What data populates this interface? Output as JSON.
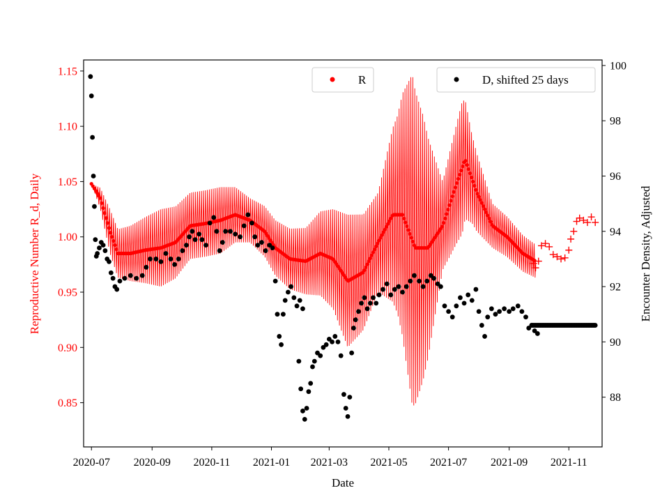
{
  "chart_data": {
    "type": "scatter",
    "xlabel": "Date",
    "ylabel_left": "Reproductive Number R_d, Daily",
    "ylabel_right": "Encounter Density, Adjusted",
    "left_color": "#ff0000",
    "right_color": "#000000",
    "x_range": [
      "2020-06-23",
      "2021-12-05"
    ],
    "y_left_range": [
      0.81,
      1.16
    ],
    "y_right_range": [
      86.2,
      100.2
    ],
    "x_ticks": [
      "2020-07",
      "2020-09",
      "2020-11",
      "2021-01",
      "2021-03",
      "2021-05",
      "2021-07",
      "2021-09",
      "2021-11"
    ],
    "y_left_ticks": [
      "0.85",
      "0.90",
      "0.95",
      "1.00",
      "1.05",
      "1.10",
      "1.15"
    ],
    "y_right_ticks": [
      "88",
      "90",
      "92",
      "94",
      "96",
      "98",
      "100"
    ],
    "legend": [
      {
        "label": "R",
        "color": "#ff0000"
      },
      {
        "label": "D, shifted 25 days",
        "color": "#000000"
      }
    ],
    "r_trend": [
      [
        "2020-07-01",
        1.048
      ],
      [
        "2020-07-10",
        1.035
      ],
      [
        "2020-07-20",
        1.005
      ],
      [
        "2020-07-28",
        0.985
      ],
      [
        "2020-08-10",
        0.985
      ],
      [
        "2020-08-25",
        0.988
      ],
      [
        "2020-09-10",
        0.99
      ],
      [
        "2020-09-25",
        0.995
      ],
      [
        "2020-10-10",
        1.01
      ],
      [
        "2020-10-25",
        1.012
      ],
      [
        "2020-11-10",
        1.015
      ],
      [
        "2020-11-25",
        1.02
      ],
      [
        "2020-12-10",
        1.015
      ],
      [
        "2020-12-25",
        1.005
      ],
      [
        "2021-01-05",
        0.99
      ],
      [
        "2021-01-20",
        0.98
      ],
      [
        "2021-02-05",
        0.978
      ],
      [
        "2021-02-20",
        0.985
      ],
      [
        "2021-03-05",
        0.98
      ],
      [
        "2021-03-20",
        0.96
      ],
      [
        "2021-04-05",
        0.968
      ],
      [
        "2021-04-20",
        0.995
      ],
      [
        "2021-05-05",
        1.02
      ],
      [
        "2021-05-15",
        1.02
      ],
      [
        "2021-05-28",
        0.99
      ],
      [
        "2021-06-10",
        0.99
      ],
      [
        "2021-06-25",
        1.01
      ],
      [
        "2021-07-10",
        1.05
      ],
      [
        "2021-07-18",
        1.07
      ],
      [
        "2021-07-30",
        1.04
      ],
      [
        "2021-08-15",
        1.01
      ],
      [
        "2021-08-30",
        1.0
      ],
      [
        "2021-09-15",
        0.985
      ],
      [
        "2021-09-28",
        0.978
      ]
    ],
    "r_amplitude": [
      [
        "2020-07-01",
        0.0
      ],
      [
        "2020-07-20",
        0.02
      ],
      [
        "2020-08-10",
        0.025
      ],
      [
        "2020-09-10",
        0.035
      ],
      [
        "2020-10-10",
        0.03
      ],
      [
        "2020-11-10",
        0.03
      ],
      [
        "2020-12-10",
        0.02
      ],
      [
        "2021-01-05",
        0.025
      ],
      [
        "2021-02-05",
        0.03
      ],
      [
        "2021-03-05",
        0.045
      ],
      [
        "2021-03-20",
        0.06
      ],
      [
        "2021-04-20",
        0.045
      ],
      [
        "2021-05-10",
        0.09
      ],
      [
        "2021-05-25",
        0.15
      ],
      [
        "2021-06-05",
        0.12
      ],
      [
        "2021-06-25",
        0.04
      ],
      [
        "2021-07-15",
        0.06
      ],
      [
        "2021-07-25",
        0.04
      ],
      [
        "2021-08-15",
        0.02
      ],
      [
        "2021-09-28",
        0.015
      ]
    ],
    "r_plus_markers": [
      [
        "2021-09-26",
        0.976
      ],
      [
        "2021-09-28",
        0.972
      ],
      [
        "2021-10-01",
        0.978
      ],
      [
        "2021-10-04",
        0.992
      ],
      [
        "2021-10-08",
        0.994
      ],
      [
        "2021-10-12",
        0.991
      ],
      [
        "2021-10-16",
        0.984
      ],
      [
        "2021-10-20",
        0.982
      ],
      [
        "2021-10-24",
        0.98
      ],
      [
        "2021-10-28",
        0.981
      ],
      [
        "2021-11-01",
        0.988
      ],
      [
        "2021-11-03",
        0.998
      ],
      [
        "2021-11-06",
        1.005
      ],
      [
        "2021-11-09",
        1.014
      ],
      [
        "2021-11-12",
        1.017
      ],
      [
        "2021-11-16",
        1.015
      ],
      [
        "2021-11-20",
        1.013
      ],
      [
        "2021-11-24",
        1.018
      ],
      [
        "2021-11-28",
        1.013
      ]
    ],
    "d_points": [
      [
        "2020-06-30",
        99.6
      ],
      [
        "2020-07-01",
        98.9
      ],
      [
        "2020-07-02",
        97.4
      ],
      [
        "2020-07-03",
        96.0
      ],
      [
        "2020-07-04",
        94.9
      ],
      [
        "2020-07-05",
        93.7
      ],
      [
        "2020-07-06",
        93.1
      ],
      [
        "2020-07-07",
        93.2
      ],
      [
        "2020-07-09",
        93.4
      ],
      [
        "2020-07-11",
        93.6
      ],
      [
        "2020-07-13",
        93.5
      ],
      [
        "2020-07-15",
        93.3
      ],
      [
        "2020-07-17",
        93.0
      ],
      [
        "2020-07-19",
        92.9
      ],
      [
        "2020-07-21",
        92.5
      ],
      [
        "2020-07-23",
        92.3
      ],
      [
        "2020-07-25",
        92.0
      ],
      [
        "2020-07-27",
        91.9
      ],
      [
        "2020-07-30",
        92.2
      ],
      [
        "2020-08-04",
        92.3
      ],
      [
        "2020-08-10",
        92.4
      ],
      [
        "2020-08-16",
        92.3
      ],
      [
        "2020-08-22",
        92.4
      ],
      [
        "2020-08-26",
        92.7
      ],
      [
        "2020-08-30",
        93.0
      ],
      [
        "2020-09-05",
        93.0
      ],
      [
        "2020-09-10",
        92.9
      ],
      [
        "2020-09-15",
        93.2
      ],
      [
        "2020-09-20",
        93.0
      ],
      [
        "2020-09-24",
        92.8
      ],
      [
        "2020-09-28",
        93.0
      ],
      [
        "2020-10-02",
        93.3
      ],
      [
        "2020-10-06",
        93.5
      ],
      [
        "2020-10-09",
        93.8
      ],
      [
        "2020-10-12",
        94.0
      ],
      [
        "2020-10-15",
        93.7
      ],
      [
        "2020-10-19",
        93.9
      ],
      [
        "2020-10-22",
        93.7
      ],
      [
        "2020-10-26",
        93.5
      ],
      [
        "2020-10-30",
        94.3
      ],
      [
        "2020-11-03",
        94.5
      ],
      [
        "2020-11-06",
        94.0
      ],
      [
        "2020-11-09",
        93.3
      ],
      [
        "2020-11-12",
        93.6
      ],
      [
        "2020-11-15",
        94.0
      ],
      [
        "2020-11-20",
        94.0
      ],
      [
        "2020-11-25",
        93.9
      ],
      [
        "2020-11-30",
        93.8
      ],
      [
        "2020-12-04",
        94.2
      ],
      [
        "2020-12-08",
        94.6
      ],
      [
        "2020-12-12",
        94.3
      ],
      [
        "2020-12-15",
        93.8
      ],
      [
        "2020-12-18",
        93.5
      ],
      [
        "2020-12-22",
        93.6
      ],
      [
        "2020-12-26",
        93.3
      ],
      [
        "2020-12-30",
        93.5
      ],
      [
        "2021-01-02",
        93.4
      ],
      [
        "2021-01-05",
        92.2
      ],
      [
        "2021-01-07",
        91.0
      ],
      [
        "2021-01-09",
        90.2
      ],
      [
        "2021-01-11",
        89.9
      ],
      [
        "2021-01-13",
        91.0
      ],
      [
        "2021-01-15",
        91.5
      ],
      [
        "2021-01-18",
        91.8
      ],
      [
        "2021-01-21",
        92.0
      ],
      [
        "2021-01-24",
        91.6
      ],
      [
        "2021-01-27",
        91.3
      ],
      [
        "2021-01-30",
        91.5
      ],
      [
        "2021-02-02",
        91.2
      ],
      [
        "2021-01-29",
        89.3
      ],
      [
        "2021-01-31",
        88.3
      ],
      [
        "2021-02-02",
        87.5
      ],
      [
        "2021-02-04",
        87.2
      ],
      [
        "2021-02-06",
        87.6
      ],
      [
        "2021-02-08",
        88.2
      ],
      [
        "2021-02-10",
        88.5
      ],
      [
        "2021-02-12",
        89.1
      ],
      [
        "2021-02-14",
        89.3
      ],
      [
        "2021-02-17",
        89.6
      ],
      [
        "2021-02-20",
        89.5
      ],
      [
        "2021-02-23",
        89.8
      ],
      [
        "2021-02-26",
        89.9
      ],
      [
        "2021-03-01",
        90.1
      ],
      [
        "2021-03-04",
        90.0
      ],
      [
        "2021-03-07",
        90.2
      ],
      [
        "2021-03-10",
        90.0
      ],
      [
        "2021-03-13",
        89.5
      ],
      [
        "2021-03-16",
        88.1
      ],
      [
        "2021-03-18",
        87.6
      ],
      [
        "2021-03-20",
        87.3
      ],
      [
        "2021-03-22",
        88.0
      ],
      [
        "2021-03-24",
        89.6
      ],
      [
        "2021-03-26",
        90.5
      ],
      [
        "2021-03-28",
        90.8
      ],
      [
        "2021-03-31",
        91.1
      ],
      [
        "2021-04-03",
        91.4
      ],
      [
        "2021-04-06",
        91.6
      ],
      [
        "2021-04-09",
        91.2
      ],
      [
        "2021-04-12",
        91.4
      ],
      [
        "2021-04-15",
        91.6
      ],
      [
        "2021-04-18",
        91.4
      ],
      [
        "2021-04-21",
        91.7
      ],
      [
        "2021-04-25",
        91.9
      ],
      [
        "2021-04-29",
        92.1
      ],
      [
        "2021-05-03",
        91.7
      ],
      [
        "2021-05-07",
        91.9
      ],
      [
        "2021-05-11",
        92.0
      ],
      [
        "2021-05-15",
        91.8
      ],
      [
        "2021-05-19",
        92.0
      ],
      [
        "2021-05-23",
        92.2
      ],
      [
        "2021-05-27",
        92.4
      ],
      [
        "2021-06-01",
        92.2
      ],
      [
        "2021-06-05",
        92.0
      ],
      [
        "2021-06-09",
        92.2
      ],
      [
        "2021-06-13",
        92.4
      ],
      [
        "2021-06-16",
        92.3
      ],
      [
        "2021-06-20",
        92.1
      ],
      [
        "2021-06-23",
        92.0
      ],
      [
        "2021-06-27",
        91.3
      ],
      [
        "2021-07-01",
        91.1
      ],
      [
        "2021-07-05",
        90.9
      ],
      [
        "2021-07-09",
        91.3
      ],
      [
        "2021-07-13",
        91.6
      ],
      [
        "2021-07-17",
        91.4
      ],
      [
        "2021-07-21",
        91.7
      ],
      [
        "2021-07-25",
        91.5
      ],
      [
        "2021-07-29",
        91.9
      ],
      [
        "2021-08-01",
        91.1
      ],
      [
        "2021-08-04",
        90.6
      ],
      [
        "2021-08-07",
        90.2
      ],
      [
        "2021-08-10",
        90.9
      ],
      [
        "2021-08-14",
        91.2
      ],
      [
        "2021-08-18",
        91.0
      ],
      [
        "2021-08-22",
        91.1
      ],
      [
        "2021-08-27",
        91.2
      ],
      [
        "2021-09-01",
        91.1
      ],
      [
        "2021-09-05",
        91.2
      ],
      [
        "2021-09-10",
        91.3
      ],
      [
        "2021-09-14",
        91.1
      ],
      [
        "2021-09-18",
        90.9
      ],
      [
        "2021-09-21",
        90.5
      ],
      [
        "2021-09-24",
        90.6
      ],
      [
        "2021-09-27",
        90.4
      ],
      [
        "2021-09-30",
        90.3
      ]
    ],
    "d_flat": {
      "from": "2021-09-24",
      "to": "2021-11-28",
      "value": 90.6
    }
  }
}
